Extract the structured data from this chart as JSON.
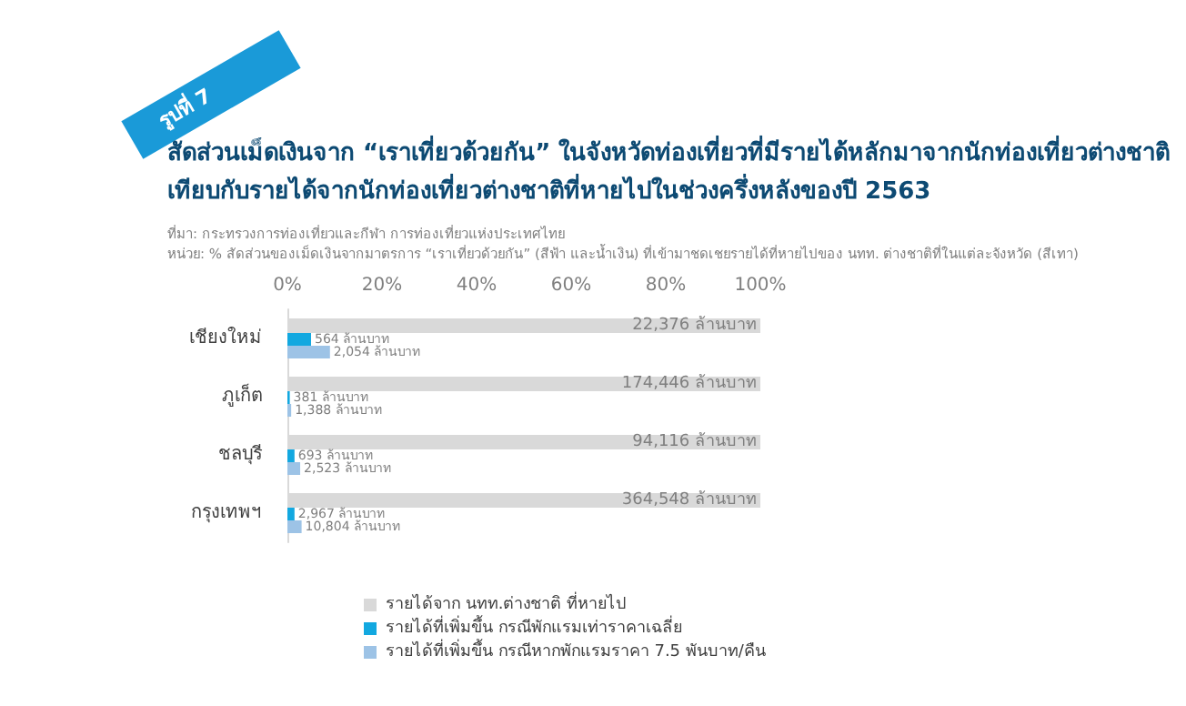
{
  "chart_data": {
    "type": "bar",
    "orientation": "horizontal",
    "title": "สัดส่วนเม็ดเงินจาก “เราเที่ยวด้วยกัน” ในจังหวัดท่องเที่ยวที่มีรายได้หลักมาจากนักท่องเที่ยวต่างชาติ เทียบกับรายได้จากนักท่องเที่ยวต่างชาติที่หายไปในช่วงครึ่งหลังของปี 2563",
    "annotations": [
      "รูปที่ 7",
      "ที่มา: กระทรวงการท่องเที่ยวและกีฬา การท่องเที่ยวแห่งประเทศไทย",
      "หน่วย: % สัดส่วนของเม็ดเงินจากมาตรการ “เราเที่ยวด้วยกัน” (สีฟ้า และน้ำเงิน) ที่เข้ามาชดเชยรายได้ที่หายไปของ นทท. ต่างชาติที่ในแต่ละจังหวัด (สีเทา)",
      {
        "text": "22,376 ล้านบาท",
        "x": 100,
        "y": "เชียงใหม่"
      },
      {
        "text": "174,446 ล้านบาท",
        "x": 100,
        "y": "ภูเก็ต"
      },
      {
        "text": "94,116 ล้านบาท",
        "x": 100,
        "y": "ชลบุรี"
      },
      {
        "text": "364,548 ล้านบาท",
        "x": 100,
        "y": "กรุงเทพฯ"
      },
      {
        "text": "564 ล้านบาท",
        "x": 5,
        "y": "เชียงใหม่"
      },
      {
        "text": "381 ล้านบาท",
        "x": 0.5,
        "y": "ภูเก็ต"
      },
      {
        "text": "693 ล้านบาท",
        "x": 1.5,
        "y": "ชลบุรี"
      },
      {
        "text": "2,967 ล้านบาท",
        "x": 1.5,
        "y": "กรุงเทพฯ"
      },
      {
        "text": "2,054 ล้านบาท",
        "x": 9,
        "y": "เชียงใหม่"
      },
      {
        "text": "1,388 ล้านบาท",
        "x": 0.8,
        "y": "ภูเก็ต"
      },
      {
        "text": "2,523 ล้านบาท",
        "x": 2.7,
        "y": "ชลบุรี"
      },
      {
        "text": "10,804 ล้านบาท",
        "x": 3,
        "y": "กรุงเทพฯ"
      }
    ],
    "categories": [
      "เชียงใหม่",
      "ภูเก็ต",
      "ชลบุรี",
      "กรุงเทพฯ"
    ],
    "series": [
      {
        "name": "รายได้จาก นทท.ต่างชาติ ที่หายไป",
        "color": "#d9d9d9",
        "values": [
          100,
          100,
          100,
          100
        ]
      },
      {
        "name": "รายได้ที่เพิ่มขึ้น กรณีพักแรมเท่าราคาเฉลี่ย",
        "color": "#12a8e0",
        "values": [
          5,
          0.5,
          1.5,
          1.5
        ]
      },
      {
        "name": "รายได้ที่เพิ่มขึ้น กรณีหากพักแรมราคา 7.5 พันบาท/คืน",
        "color": "#9dc3e6",
        "values": [
          9,
          0.8,
          2.7,
          3
        ]
      }
    ],
    "xlim": [
      0,
      100
    ],
    "xticks": [
      {
        "value": 0,
        "label": "0%"
      },
      {
        "value": 20,
        "label": "20%"
      },
      {
        "value": 40,
        "label": "40%"
      },
      {
        "value": 60,
        "label": "60%"
      },
      {
        "value": 80,
        "label": "80%"
      },
      {
        "value": 100,
        "label": "100%"
      }
    ],
    "legend": "bottom",
    "grid": false
  }
}
